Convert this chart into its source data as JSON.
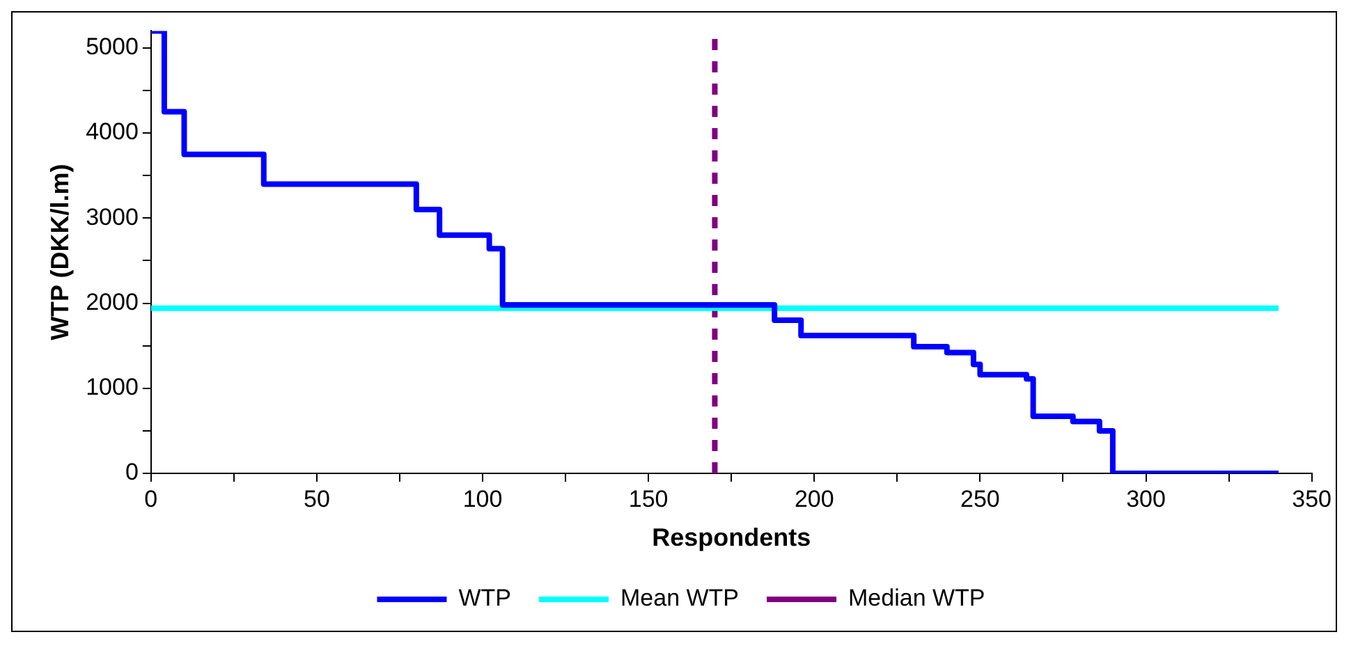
{
  "chart_data": {
    "type": "step",
    "xlabel": "Respondents",
    "ylabel": "WTP (DKK/l.m)",
    "series": [
      {
        "name": "WTP",
        "type": "step",
        "color": "#0000ff",
        "x": [
          0,
          4,
          10,
          34,
          80,
          87,
          102,
          106,
          188,
          196,
          230,
          240,
          248,
          250,
          264,
          266,
          278,
          286,
          290,
          340
        ],
        "values": [
          5200,
          4250,
          3750,
          3400,
          3100,
          2800,
          2640,
          1980,
          1800,
          1620,
          1490,
          1420,
          1280,
          1160,
          1110,
          670,
          610,
          500,
          0,
          0
        ]
      },
      {
        "name": "Mean WTP",
        "type": "line",
        "color": "#00ffff",
        "x": [
          0,
          340
        ],
        "values": [
          1940,
          1940
        ]
      },
      {
        "name": "Median WTP",
        "type": "line",
        "line_style": "dashed",
        "color": "#800080",
        "x": [
          170,
          170
        ],
        "values": [
          0,
          5200
        ]
      }
    ],
    "xlim": [
      0,
      350
    ],
    "xticks": [
      0,
      {
        "value": 25,
        "label": null
      },
      50,
      {
        "value": 75,
        "label": null
      },
      100,
      {
        "value": 125,
        "label": null
      },
      150,
      {
        "value": 175,
        "label": null
      },
      200,
      {
        "value": 225,
        "label": null
      },
      250,
      {
        "value": 275,
        "label": null
      },
      300,
      {
        "value": 325,
        "label": null
      },
      350
    ],
    "ylim": [
      0,
      5200
    ],
    "yticks": [
      0,
      {
        "value": 500,
        "label": null
      },
      1000,
      {
        "value": 1500,
        "label": null
      },
      2000,
      {
        "value": 2500,
        "label": null
      },
      3000,
      {
        "value": 3500,
        "label": null
      },
      4000,
      {
        "value": 4500,
        "label": null
      },
      5000
    ],
    "grid": false,
    "legend": "bottom",
    "marker": "none"
  }
}
